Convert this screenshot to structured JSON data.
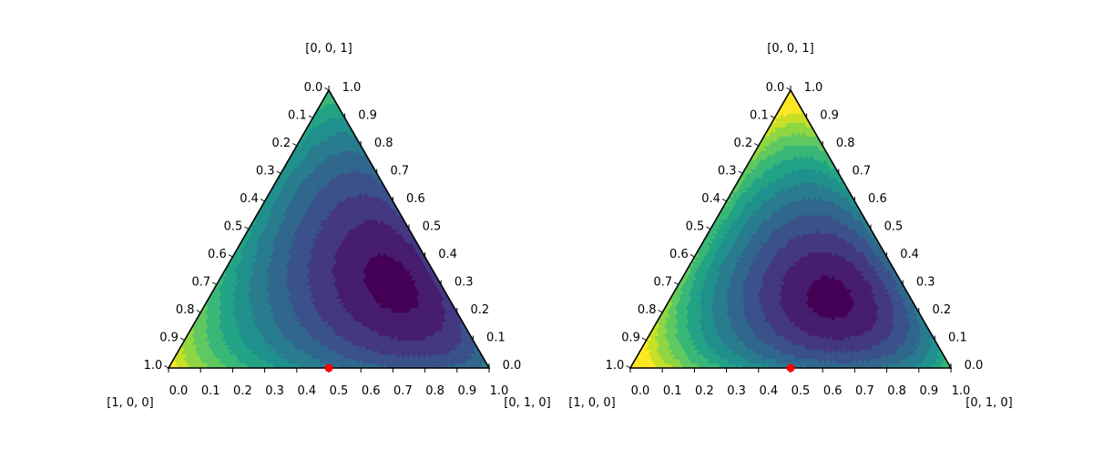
{
  "chart_data": [
    {
      "type": "heatmap",
      "subtype": "ternary-filled-contour",
      "corner_labels": {
        "left": "[1, 0, 0]",
        "right": "[0, 1, 0]",
        "top": "[0, 0, 1]"
      },
      "axis_ticks": {
        "bottom": [
          "0.0",
          "0.1",
          "0.2",
          "0.3",
          "0.4",
          "0.5",
          "0.6",
          "0.7",
          "0.8",
          "0.9",
          "1.0"
        ],
        "left": [
          "1.0",
          "0.9",
          "0.8",
          "0.7",
          "0.6",
          "0.5",
          "0.4",
          "0.3",
          "0.2",
          "0.1",
          "0.0"
        ],
        "right": [
          "0.0",
          "0.1",
          "0.2",
          "0.3",
          "0.4",
          "0.5",
          "0.6",
          "0.7",
          "0.8",
          "0.9",
          "1.0"
        ]
      },
      "colormap": "viridis",
      "levels": 12,
      "minimum_region": [
        0.15,
        0.55,
        0.3
      ],
      "marked_point": {
        "coords": [
          0.5,
          0.5,
          0.0
        ],
        "color": "#ff0000"
      }
    },
    {
      "type": "heatmap",
      "subtype": "ternary-filled-contour",
      "corner_labels": {
        "left": "[1, 0, 0]",
        "right": "[0, 1, 0]",
        "top": "[0, 0, 1]"
      },
      "axis_ticks": {
        "bottom": [
          "0.0",
          "0.1",
          "0.2",
          "0.3",
          "0.4",
          "0.5",
          "0.6",
          "0.7",
          "0.8",
          "0.9",
          "1.0"
        ],
        "left": [
          "1.0",
          "0.9",
          "0.8",
          "0.7",
          "0.6",
          "0.5",
          "0.4",
          "0.3",
          "0.2",
          "0.1",
          "0.0"
        ],
        "right": [
          "0.0",
          "0.1",
          "0.2",
          "0.3",
          "0.4",
          "0.5",
          "0.6",
          "0.7",
          "0.8",
          "0.9",
          "1.0"
        ]
      },
      "colormap": "viridis",
      "levels": 12,
      "minimum_region": [
        0.25,
        0.5,
        0.25
      ],
      "marked_point": {
        "coords": [
          0.5,
          0.5,
          0.0
        ],
        "color": "#ff0000"
      }
    }
  ]
}
